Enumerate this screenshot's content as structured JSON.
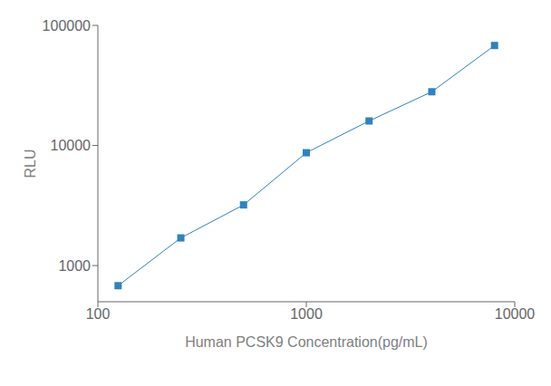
{
  "chart_data": {
    "type": "line",
    "x": [
      125,
      250,
      500,
      1000,
      2000,
      4000,
      8000
    ],
    "values": [
      680,
      1700,
      3200,
      8700,
      16000,
      28000,
      68000
    ],
    "xlabel": "Human PCSK9 Concentration(pg/mL)",
    "ylabel": "RLU",
    "xlim": [
      100,
      10000
    ],
    "ylim": [
      500,
      100000
    ],
    "xticks": [
      100,
      1000,
      10000
    ],
    "yticks": [
      1000,
      10000,
      100000
    ],
    "log": true,
    "grid": false,
    "marker": "square"
  }
}
